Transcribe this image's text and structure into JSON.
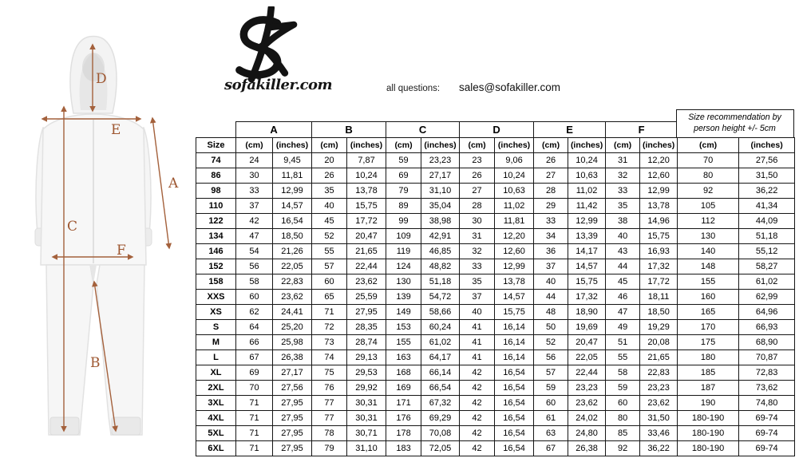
{
  "logo": {
    "monogram": "SK",
    "site": "sofakiller.com"
  },
  "contact": {
    "label": "all questions:",
    "email": "sales@sofakiller.com"
  },
  "diagram": {
    "arrow_color": "#a4613c",
    "labels": {
      "a": "A",
      "b": "B",
      "c": "C",
      "d": "D",
      "e": "E",
      "f": "F"
    }
  },
  "table": {
    "group_headers": [
      "A",
      "B",
      "C",
      "D",
      "E",
      "F"
    ],
    "size_recommendation_line1": "Size recommendation by",
    "size_recommendation_line2": "person height +/- 5cm",
    "size_header": "Size",
    "unit_cm": "(cm)",
    "unit_inches": "(inches)",
    "rows": [
      {
        "size": "74",
        "values": [
          "24",
          "9,45",
          "20",
          "7,87",
          "59",
          "23,23",
          "23",
          "9,06",
          "26",
          "10,24",
          "31",
          "12,20",
          "70",
          "27,56"
        ]
      },
      {
        "size": "86",
        "values": [
          "30",
          "11,81",
          "26",
          "10,24",
          "69",
          "27,17",
          "26",
          "10,24",
          "27",
          "10,63",
          "32",
          "12,60",
          "80",
          "31,50"
        ]
      },
      {
        "size": "98",
        "values": [
          "33",
          "12,99",
          "35",
          "13,78",
          "79",
          "31,10",
          "27",
          "10,63",
          "28",
          "11,02",
          "33",
          "12,99",
          "92",
          "36,22"
        ]
      },
      {
        "size": "110",
        "values": [
          "37",
          "14,57",
          "40",
          "15,75",
          "89",
          "35,04",
          "28",
          "11,02",
          "29",
          "11,42",
          "35",
          "13,78",
          "105",
          "41,34"
        ]
      },
      {
        "size": "122",
        "values": [
          "42",
          "16,54",
          "45",
          "17,72",
          "99",
          "38,98",
          "30",
          "11,81",
          "33",
          "12,99",
          "38",
          "14,96",
          "112",
          "44,09"
        ]
      },
      {
        "size": "134",
        "values": [
          "47",
          "18,50",
          "52",
          "20,47",
          "109",
          "42,91",
          "31",
          "12,20",
          "34",
          "13,39",
          "40",
          "15,75",
          "130",
          "51,18"
        ]
      },
      {
        "size": "146",
        "values": [
          "54",
          "21,26",
          "55",
          "21,65",
          "119",
          "46,85",
          "32",
          "12,60",
          "36",
          "14,17",
          "43",
          "16,93",
          "140",
          "55,12"
        ]
      },
      {
        "size": "152",
        "values": [
          "56",
          "22,05",
          "57",
          "22,44",
          "124",
          "48,82",
          "33",
          "12,99",
          "37",
          "14,57",
          "44",
          "17,32",
          "148",
          "58,27"
        ]
      },
      {
        "size": "158",
        "values": [
          "58",
          "22,83",
          "60",
          "23,62",
          "130",
          "51,18",
          "35",
          "13,78",
          "40",
          "15,75",
          "45",
          "17,72",
          "155",
          "61,02"
        ]
      },
      {
        "size": "XXS",
        "values": [
          "60",
          "23,62",
          "65",
          "25,59",
          "139",
          "54,72",
          "37",
          "14,57",
          "44",
          "17,32",
          "46",
          "18,11",
          "160",
          "62,99"
        ]
      },
      {
        "size": "XS",
        "values": [
          "62",
          "24,41",
          "71",
          "27,95",
          "149",
          "58,66",
          "40",
          "15,75",
          "48",
          "18,90",
          "47",
          "18,50",
          "165",
          "64,96"
        ]
      },
      {
        "size": "S",
        "values": [
          "64",
          "25,20",
          "72",
          "28,35",
          "153",
          "60,24",
          "41",
          "16,14",
          "50",
          "19,69",
          "49",
          "19,29",
          "170",
          "66,93"
        ]
      },
      {
        "size": "M",
        "values": [
          "66",
          "25,98",
          "73",
          "28,74",
          "155",
          "61,02",
          "41",
          "16,14",
          "52",
          "20,47",
          "51",
          "20,08",
          "175",
          "68,90"
        ]
      },
      {
        "size": "L",
        "values": [
          "67",
          "26,38",
          "74",
          "29,13",
          "163",
          "64,17",
          "41",
          "16,14",
          "56",
          "22,05",
          "55",
          "21,65",
          "180",
          "70,87"
        ]
      },
      {
        "size": "XL",
        "values": [
          "69",
          "27,17",
          "75",
          "29,53",
          "168",
          "66,14",
          "42",
          "16,54",
          "57",
          "22,44",
          "58",
          "22,83",
          "185",
          "72,83"
        ]
      },
      {
        "size": "2XL",
        "values": [
          "70",
          "27,56",
          "76",
          "29,92",
          "169",
          "66,54",
          "42",
          "16,54",
          "59",
          "23,23",
          "59",
          "23,23",
          "187",
          "73,62"
        ]
      },
      {
        "size": "3XL",
        "values": [
          "71",
          "27,95",
          "77",
          "30,31",
          "171",
          "67,32",
          "42",
          "16,54",
          "60",
          "23,62",
          "60",
          "23,62",
          "190",
          "74,80"
        ]
      },
      {
        "size": "4XL",
        "values": [
          "71",
          "27,95",
          "77",
          "30,31",
          "176",
          "69,29",
          "42",
          "16,54",
          "61",
          "24,02",
          "80",
          "31,50",
          "180-190",
          "69-74"
        ]
      },
      {
        "size": "5XL",
        "values": [
          "71",
          "27,95",
          "78",
          "30,71",
          "178",
          "70,08",
          "42",
          "16,54",
          "63",
          "24,80",
          "85",
          "33,46",
          "180-190",
          "69-74"
        ]
      },
      {
        "size": "6XL",
        "values": [
          "71",
          "27,95",
          "79",
          "31,10",
          "183",
          "72,05",
          "42",
          "16,54",
          "67",
          "26,38",
          "92",
          "36,22",
          "180-190",
          "69-74"
        ]
      }
    ]
  }
}
